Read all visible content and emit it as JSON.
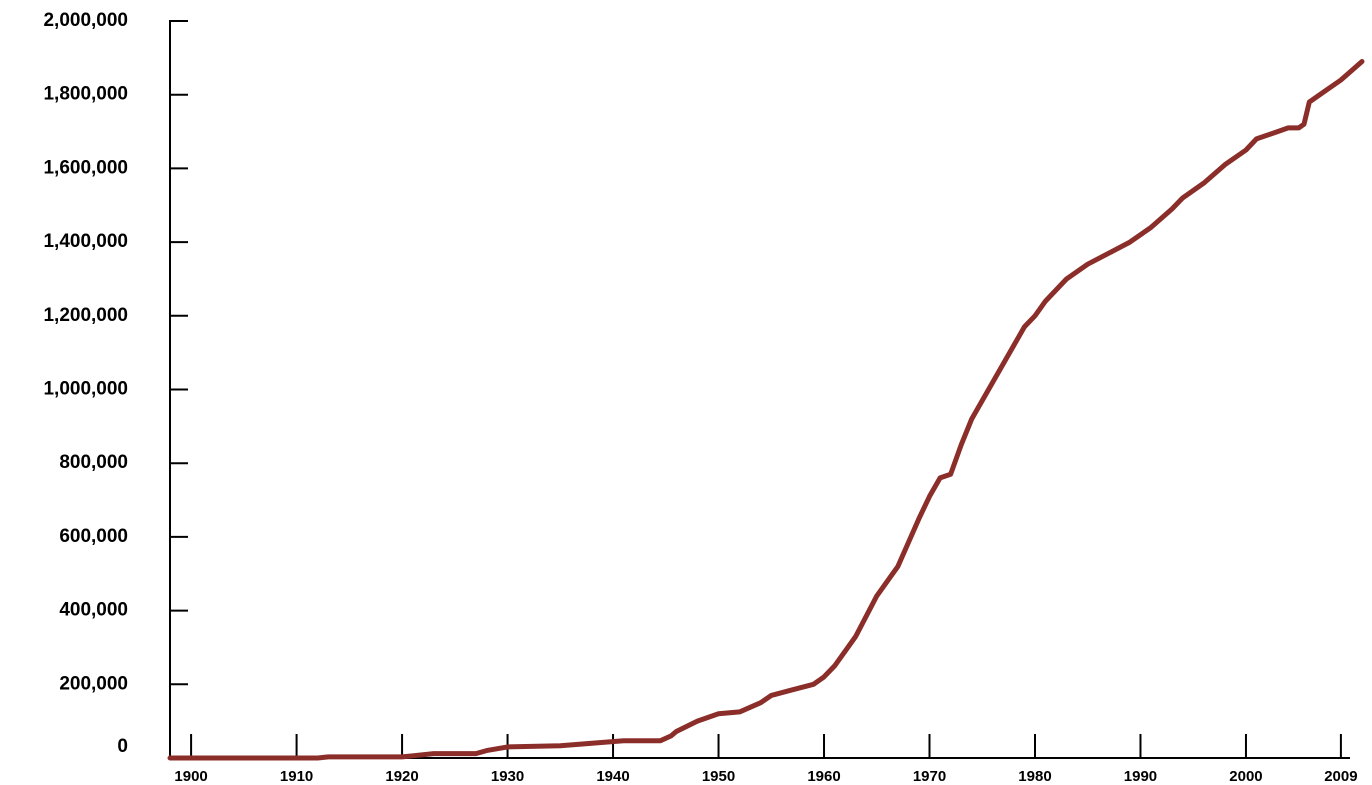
{
  "chart_data": {
    "type": "line",
    "title": "",
    "xlabel": "",
    "ylabel": "",
    "xlim": [
      1898,
      2011
    ],
    "ylim": [
      0,
      2000000
    ],
    "grid": false,
    "legend": "none",
    "y_ticks": [
      0,
      200000,
      400000,
      600000,
      800000,
      1000000,
      1200000,
      1400000,
      1600000,
      1800000,
      2000000
    ],
    "y_tick_labels": [
      "0",
      "200,000",
      "400,000",
      "600,000",
      "800,000",
      "1,000,000",
      "1,200,000",
      "1,400,000",
      "1,600,000",
      "1,800,000",
      "2,000,000"
    ],
    "x_ticks": [
      1900,
      1910,
      1920,
      1930,
      1940,
      1950,
      1960,
      1970,
      1980,
      1990,
      2000,
      2009
    ],
    "x_tick_labels": [
      "1900",
      "1910",
      "1920",
      "1930",
      "1940",
      "1950",
      "1960",
      "1970",
      "1980",
      "1990",
      "2000",
      "2009"
    ],
    "series": [
      {
        "color": "#8b2e2a",
        "x": [
          1898,
          1912,
          1913,
          1920,
          1921,
          1923,
          1927,
          1928,
          1930,
          1935,
          1938,
          1941,
          1944.5,
          1945.5,
          1946,
          1948,
          1950,
          1952,
          1954,
          1955,
          1957,
          1959,
          1960,
          1961,
          1963,
          1965,
          1967,
          1969,
          1970,
          1971,
          1972,
          1973,
          1974,
          1976,
          1978,
          1979,
          1980,
          1981,
          1983,
          1985,
          1987,
          1989,
          1991,
          1993,
          1994,
          1996,
          1998,
          2000,
          2001,
          2003,
          2004,
          2005,
          2005.5,
          2006,
          2007,
          2009,
          2011
        ],
        "y": [
          0,
          0,
          3000,
          3000,
          6000,
          12000,
          12000,
          20000,
          30000,
          33000,
          40000,
          47000,
          47000,
          60000,
          72000,
          100000,
          120000,
          125000,
          150000,
          170000,
          185000,
          200000,
          220000,
          250000,
          330000,
          440000,
          520000,
          650000,
          710000,
          760000,
          770000,
          850000,
          920000,
          1020000,
          1120000,
          1170000,
          1200000,
          1240000,
          1300000,
          1340000,
          1370000,
          1400000,
          1440000,
          1490000,
          1520000,
          1560000,
          1610000,
          1650000,
          1680000,
          1700000,
          1710000,
          1710000,
          1720000,
          1780000,
          1800000,
          1840000,
          1890000
        ]
      }
    ]
  }
}
